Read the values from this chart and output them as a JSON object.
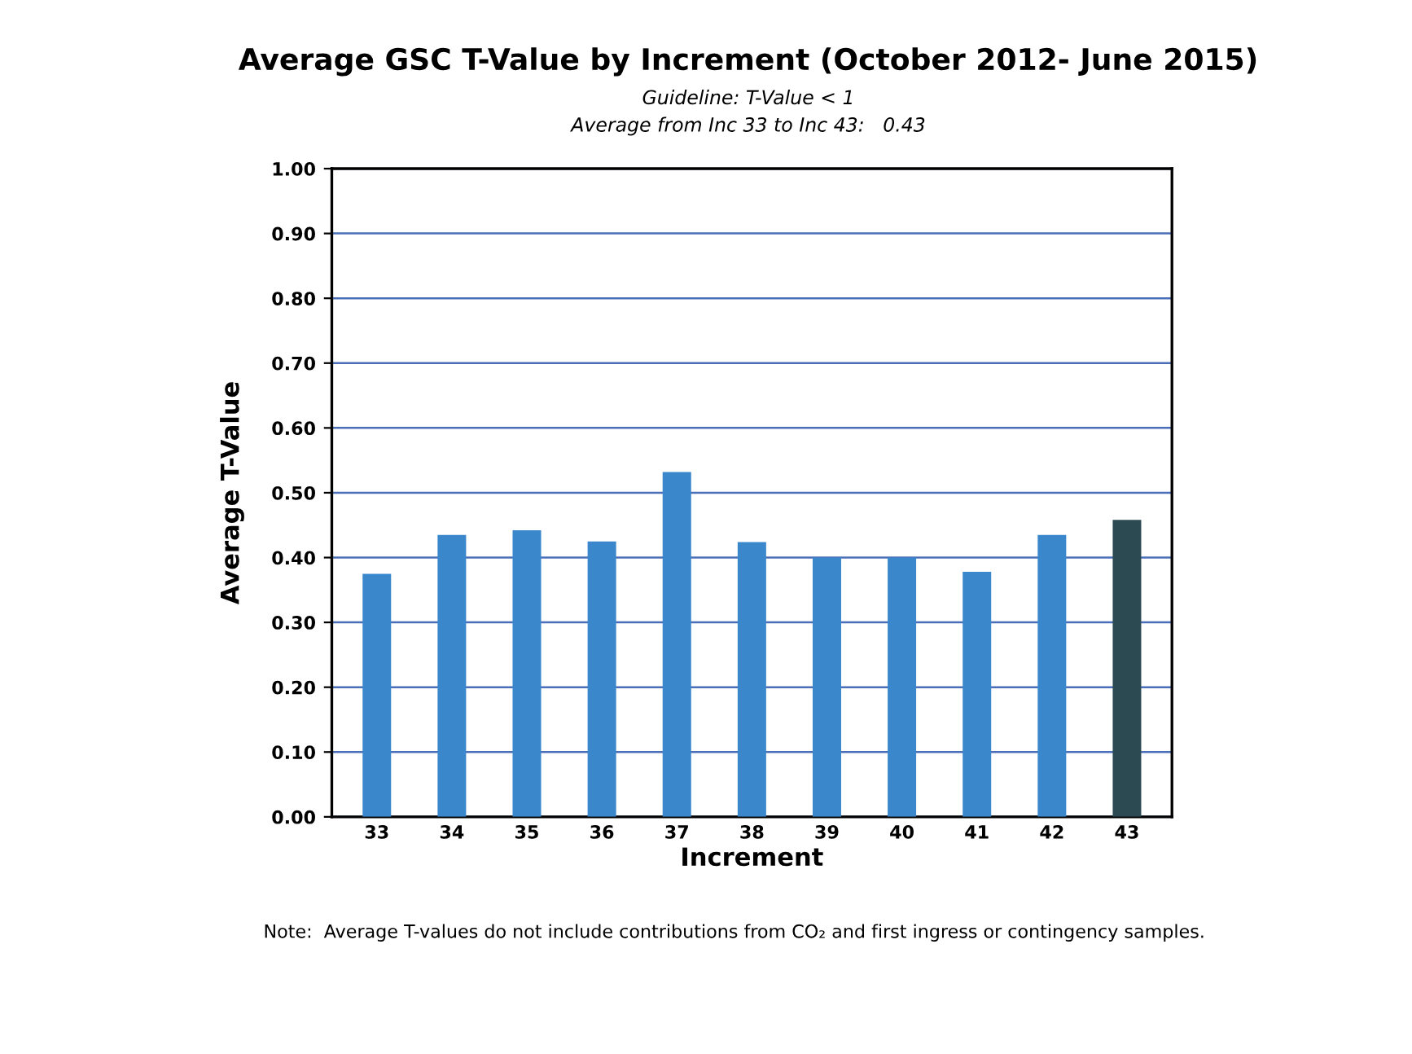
{
  "chart_data": {
    "type": "bar",
    "title": "Average GSC T-Value by Increment (October 2012- June 2015)",
    "subtitle": "Guideline: T-Value < 1\nAverage from Inc 33 to Inc 43:   0.43",
    "xlabel": "Increment",
    "ylabel": "Average T-Value",
    "categories": [
      "33",
      "34",
      "35",
      "36",
      "37",
      "38",
      "39",
      "40",
      "41",
      "42",
      "43"
    ],
    "values": [
      0.375,
      0.435,
      0.442,
      0.425,
      0.532,
      0.424,
      0.4,
      0.4,
      0.378,
      0.435,
      0.458
    ],
    "colors": [
      "#3a87cc",
      "#3a87cc",
      "#3a87cc",
      "#3a87cc",
      "#3a87cc",
      "#3a87cc",
      "#3a87cc",
      "#3a87cc",
      "#3a87cc",
      "#3a87cc",
      "#2c4a52"
    ],
    "ylim": [
      0,
      1.0
    ],
    "yticks": [
      {
        "value": 0,
        "label": "0.00"
      },
      {
        "value": 0.1,
        "label": "0.10"
      },
      {
        "value": 0.2,
        "label": "0.20"
      },
      {
        "value": 0.3,
        "label": "0.30"
      },
      {
        "value": 0.4,
        "label": "0.40"
      },
      {
        "value": 0.5,
        "label": "0.50"
      },
      {
        "value": 0.6,
        "label": "0.60"
      },
      {
        "value": 0.7,
        "label": "0.70"
      },
      {
        "value": 0.8,
        "label": "0.80"
      },
      {
        "value": 0.9,
        "label": "0.90"
      },
      {
        "value": 1.0,
        "label": "1.00"
      }
    ],
    "grid": "y",
    "annotations": [
      "Note:  Average T-values do not include contributions from CO₂ and first ingress or contingency samples."
    ]
  }
}
